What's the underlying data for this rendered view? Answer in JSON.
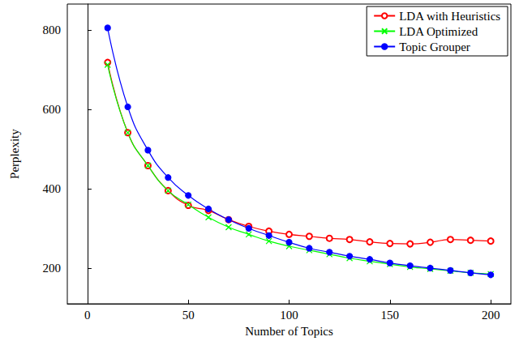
{
  "chart_data": {
    "type": "line",
    "x_label": "Number of Topics",
    "y_label": "Perplexity",
    "x": [
      10,
      20,
      30,
      40,
      50,
      60,
      70,
      80,
      90,
      100,
      110,
      120,
      130,
      140,
      150,
      160,
      170,
      180,
      190,
      200
    ],
    "series": [
      {
        "name": "LDA with Heuristics",
        "color": "#ff0000",
        "marker": "circle-open",
        "values": [
          718,
          541,
          458,
          395,
          358,
          345,
          322,
          305,
          293,
          285,
          280,
          275,
          272,
          266,
          262,
          261,
          265,
          272,
          270,
          268
        ]
      },
      {
        "name": "LDA Optimized",
        "color": "#00ff00",
        "marker": "x",
        "values": [
          712,
          541,
          458,
          395,
          360,
          328,
          303,
          285,
          268,
          255,
          245,
          235,
          225,
          217,
          210,
          203,
          198,
          193,
          188,
          185
        ]
      },
      {
        "name": "Topic Grouper",
        "color": "#0000ff",
        "marker": "circle",
        "values": [
          805,
          606,
          497,
          428,
          383,
          349,
          322,
          300,
          282,
          265,
          250,
          240,
          230,
          222,
          213,
          206,
          200,
          194,
          188,
          183
        ]
      }
    ],
    "xlim": [
      -10,
      210
    ],
    "xticks": [
      0,
      50,
      100,
      150,
      200
    ],
    "ylim": [
      110,
      865
    ],
    "yticks": [
      200,
      400,
      600,
      800
    ],
    "grid": false,
    "legend": "upper right",
    "line_style": "smooth"
  }
}
